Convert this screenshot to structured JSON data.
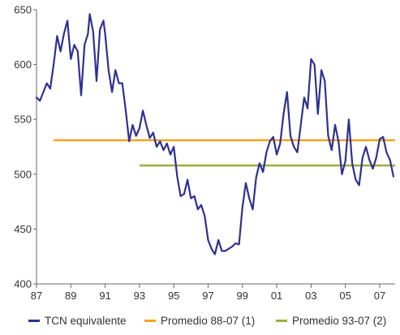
{
  "chart_data": {
    "type": "line",
    "title": "",
    "xlabel": "",
    "ylabel": "",
    "ylim": [
      400,
      650
    ],
    "xlim": [
      1987,
      2007.9
    ],
    "grid": false,
    "legend_position": "bottom",
    "y_ticks": [
      "400",
      "450",
      "500",
      "550",
      "600",
      "650"
    ],
    "x_ticks": [
      "87",
      "89",
      "91",
      "93",
      "95",
      "97",
      "99",
      "01",
      "03",
      "05",
      "07"
    ],
    "series": [
      {
        "name": "TCN equivalente",
        "color": "#2e3192",
        "kind": "line",
        "x": [
          1987.0,
          1987.2,
          1987.4,
          1987.6,
          1987.8,
          1988.0,
          1988.2,
          1988.4,
          1988.6,
          1988.8,
          1989.0,
          1989.2,
          1989.4,
          1989.6,
          1989.8,
          1990.0,
          1990.1,
          1990.3,
          1990.5,
          1990.7,
          1990.9,
          1991.0,
          1991.2,
          1991.4,
          1991.6,
          1991.8,
          1992.0,
          1992.2,
          1992.4,
          1992.6,
          1992.8,
          1993.0,
          1993.2,
          1993.4,
          1993.6,
          1993.8,
          1994.0,
          1994.2,
          1994.4,
          1994.6,
          1994.8,
          1995.0,
          1995.2,
          1995.4,
          1995.6,
          1995.8,
          1996.0,
          1996.2,
          1996.4,
          1996.6,
          1996.8,
          1997.0,
          1997.2,
          1997.4,
          1997.6,
          1997.8,
          1998.0,
          1998.2,
          1998.4,
          1998.6,
          1998.8,
          1999.0,
          1999.2,
          1999.4,
          1999.6,
          1999.8,
          2000.0,
          2000.2,
          2000.4,
          2000.6,
          2000.8,
          2001.0,
          2001.2,
          2001.4,
          2001.6,
          2001.8,
          2002.0,
          2002.2,
          2002.4,
          2002.6,
          2002.8,
          2003.0,
          2003.2,
          2003.4,
          2003.6,
          2003.8,
          2004.0,
          2004.2,
          2004.4,
          2004.6,
          2004.8,
          2005.0,
          2005.2,
          2005.4,
          2005.6,
          2005.8,
          2006.0,
          2006.2,
          2006.4,
          2006.6,
          2006.8,
          2007.0,
          2007.2,
          2007.4,
          2007.6,
          2007.8
        ],
        "y": [
          570,
          567,
          575,
          583,
          578,
          600,
          626,
          612,
          628,
          640,
          605,
          618,
          612,
          572,
          618,
          628,
          646,
          630,
          585,
          632,
          640,
          628,
          595,
          575,
          595,
          583,
          583,
          558,
          530,
          545,
          535,
          542,
          558,
          545,
          533,
          538,
          525,
          530,
          522,
          528,
          518,
          525,
          498,
          480,
          482,
          495,
          478,
          480,
          468,
          472,
          462,
          440,
          432,
          427,
          440,
          430,
          430,
          432,
          434,
          437,
          436,
          470,
          492,
          478,
          468,
          497,
          510,
          502,
          520,
          530,
          534,
          518,
          528,
          555,
          575,
          535,
          525,
          520,
          545,
          570,
          560,
          605,
          600,
          555,
          595,
          585,
          535,
          522,
          545,
          530,
          500,
          512,
          550,
          510,
          495,
          490,
          515,
          525,
          513,
          505,
          515,
          532,
          534,
          520,
          513,
          498
        ]
      },
      {
        "name": "Promedio 88-07 (1)",
        "color": "#f7a21b",
        "kind": "hline",
        "x_range": [
          1988.0,
          2007.9
        ],
        "value": 531
      },
      {
        "name": "Promedio 93-07 (2)",
        "color": "#9bae3a",
        "kind": "hline",
        "x_range": [
          1993.0,
          2007.9
        ],
        "value": 508
      }
    ]
  }
}
